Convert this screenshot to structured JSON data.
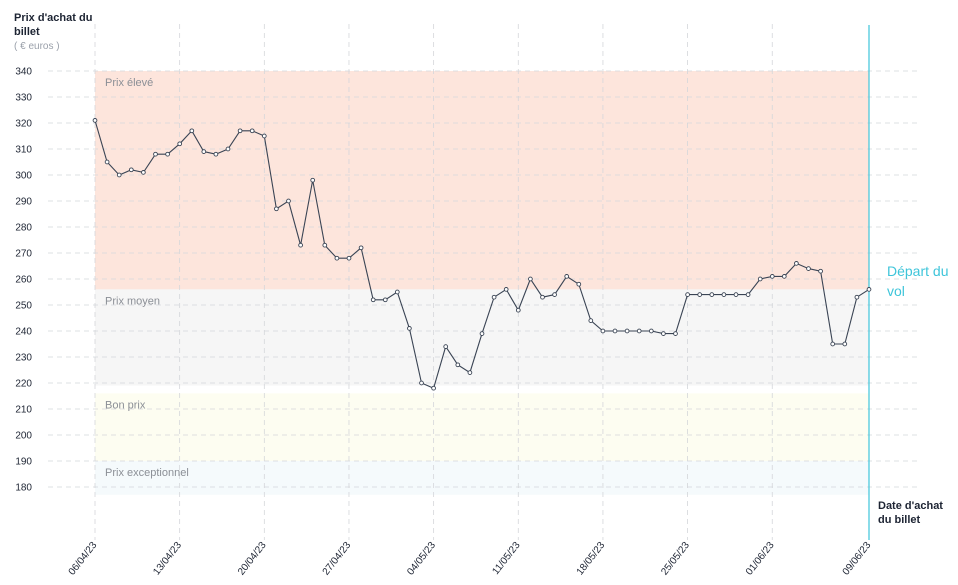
{
  "y_axis": {
    "title": "Prix d'achat du billet",
    "unit": "( € euros )"
  },
  "x_axis": {
    "title": "Date d'achat du billet"
  },
  "departure": {
    "label": "Départ du vol",
    "color": "#3ec5da"
  },
  "chart_data": {
    "type": "line",
    "ylim": [
      172,
      352
    ],
    "yticks": [
      180,
      190,
      200,
      210,
      220,
      230,
      240,
      250,
      260,
      270,
      280,
      290,
      300,
      310,
      320,
      330,
      340
    ],
    "x_start": "06/04/23",
    "x_end": "09/06/23",
    "x_tick_labels": [
      "06/04/23",
      "13/04/23",
      "20/04/23",
      "27/04/23",
      "04/05/23",
      "11/05/23",
      "18/05/23",
      "25/05/23",
      "01/06/23",
      "09/06/23"
    ],
    "grid": true,
    "zones": [
      {
        "label": "Prix élevé",
        "from": 256,
        "to": 340,
        "color": "#fde5dc"
      },
      {
        "label": "Prix moyen",
        "from": 219,
        "to": 256,
        "color": "#f6f6f6"
      },
      {
        "label": "Bon prix",
        "from": 190,
        "to": 216,
        "color": "#fdfdf1"
      },
      {
        "label": "Prix exceptionnel",
        "from": 177,
        "to": 190,
        "color": "#f5fafc"
      }
    ],
    "series": [
      {
        "values": [
          321,
          305,
          300,
          302,
          301,
          308,
          308,
          312,
          317,
          309,
          308,
          310,
          317,
          317,
          315,
          287,
          290,
          273,
          298,
          273,
          268,
          268,
          272,
          252,
          252,
          255,
          241,
          220,
          218,
          234,
          227,
          224,
          239,
          253,
          256,
          248,
          260,
          253,
          254,
          261,
          258,
          244,
          240,
          240,
          240,
          240,
          240,
          239,
          239,
          254,
          254,
          254,
          254,
          254,
          254,
          260,
          261,
          261,
          266,
          264,
          263,
          235,
          235,
          253,
          256
        ],
        "color": "#3a4454"
      }
    ]
  }
}
